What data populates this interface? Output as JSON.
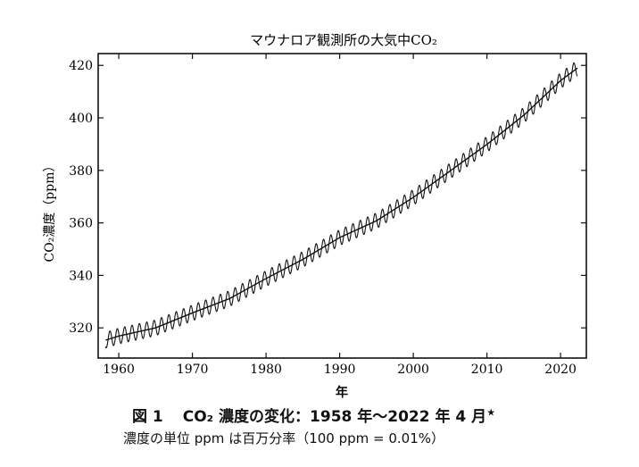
{
  "chart_data": {
    "type": "line",
    "title": "マウナロア観測所の大気中CO₂",
    "ylabel": "CO₂濃度（ppm）",
    "xlabel": "年",
    "xlim": [
      1957.2,
      2023.5
    ],
    "ylim": [
      308.5,
      424.5
    ],
    "xticks": [
      1960,
      1970,
      1980,
      1990,
      2000,
      2010,
      2020
    ],
    "yticks": [
      320,
      340,
      360,
      380,
      400,
      420
    ],
    "grid": false,
    "series": [
      {
        "style": "seasonal",
        "x": [
          1958.2,
          1960,
          1965,
          1970,
          1975,
          1980,
          1985,
          1990,
          1995,
          2000,
          2005,
          2010,
          2015,
          2020,
          2022.3
        ],
        "y": [
          315.3,
          316.9,
          320.0,
          325.7,
          331.1,
          338.8,
          346.1,
          354.4,
          360.8,
          369.7,
          379.8,
          389.9,
          401.0,
          414.2,
          419.0
        ],
        "seasonal_amplitude": 3
      },
      {
        "style": "trend",
        "x": [
          1958.2,
          1960,
          1965,
          1970,
          1975,
          1980,
          1985,
          1990,
          1995,
          2000,
          2005,
          2010,
          2015,
          2020,
          2022.3
        ],
        "y": [
          315.3,
          316.9,
          320.0,
          325.7,
          331.1,
          338.8,
          346.1,
          354.4,
          360.8,
          369.7,
          379.8,
          389.9,
          401.0,
          414.2,
          419.0
        ]
      }
    ]
  },
  "caption": {
    "figure_number": "図 1",
    "title": "CO₂ 濃度の変化：1958 年～2022 年 4 月",
    "mark": "★",
    "note": "濃度の単位 ppm は百万分率（100 ppm = 0.01%）"
  }
}
